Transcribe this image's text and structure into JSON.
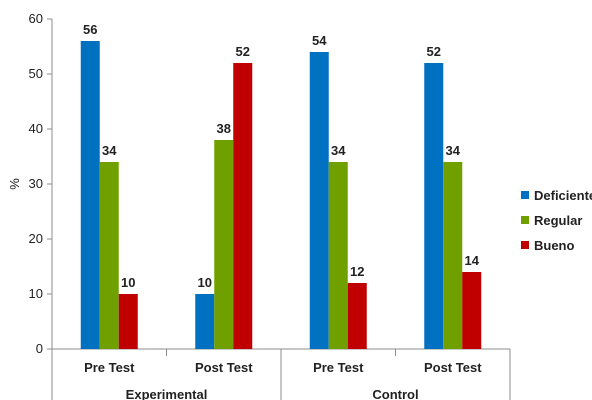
{
  "chart_data": {
    "type": "bar",
    "ylabel": "%",
    "ylim": [
      0,
      60
    ],
    "yticks": [
      0,
      10,
      20,
      30,
      40,
      50,
      60
    ],
    "categories": [
      "Pre Test",
      "Post Test",
      "Pre Test",
      "Post Test"
    ],
    "groups": [
      {
        "label": "Experimental",
        "categories": [
          0,
          1
        ]
      },
      {
        "label": "Control",
        "categories": [
          2,
          3
        ]
      }
    ],
    "series": [
      {
        "name": "Deficiente",
        "color": "#0070C0",
        "values": [
          56,
          10,
          54,
          52
        ]
      },
      {
        "name": "Regular",
        "color": "#70A000",
        "values": [
          34,
          38,
          34,
          34
        ]
      },
      {
        "name": "Bueno",
        "color": "#C00000",
        "values": [
          10,
          52,
          12,
          14
        ]
      }
    ],
    "legend_position": "right",
    "grid": false
  }
}
